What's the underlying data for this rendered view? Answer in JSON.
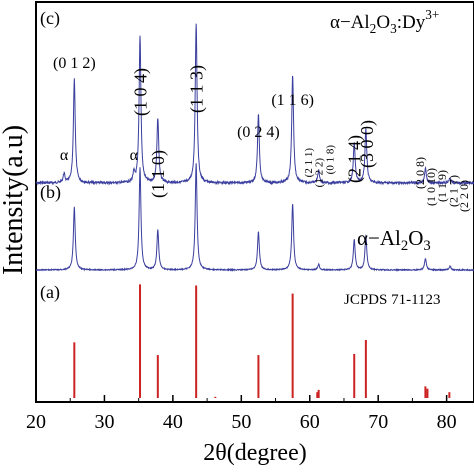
{
  "chart_data": {
    "type": "line",
    "xlabel": "2θ(degree)",
    "ylabel": "Intensity(a.u)",
    "xlim": [
      20,
      84
    ],
    "x_ticks": [
      "20",
      "30",
      "40",
      "50",
      "60",
      "70",
      "80"
    ],
    "panels": [
      {
        "id": "c",
        "panel_label": "(c)",
        "name_prefix": "α−Al",
        "name_sub1": "2",
        "name_mid": "O",
        "name_sub2": "3",
        "name_suffix": ":Dy",
        "name_sup": "3+",
        "color": "#3b3f9e",
        "peaks": [
          {
            "x": 24.1,
            "h": 0.05
          },
          {
            "x": 25.6,
            "h": 0.58
          },
          {
            "x": 34.3,
            "h": 0.05
          },
          {
            "x": 35.2,
            "h": 0.82
          },
          {
            "x": 37.8,
            "h": 0.36
          },
          {
            "x": 43.4,
            "h": 0.89
          },
          {
            "x": 52.5,
            "h": 0.38
          },
          {
            "x": 57.5,
            "h": 0.6
          },
          {
            "x": 61.3,
            "h": 0.07
          },
          {
            "x": 66.5,
            "h": 0.22
          },
          {
            "x": 68.2,
            "h": 0.3
          },
          {
            "x": 76.9,
            "h": 0.08
          },
          {
            "x": 80.5,
            "h": 0.03
          }
        ]
      },
      {
        "id": "b",
        "panel_label": "(b)",
        "name_prefix": "α−Al",
        "name_sub1": "2",
        "name_mid": "O",
        "name_sub2": "3",
        "color": "#3b3f9e",
        "peaks": [
          {
            "x": 25.6,
            "h": 0.33
          },
          {
            "x": 35.2,
            "h": 0.54
          },
          {
            "x": 37.8,
            "h": 0.21
          },
          {
            "x": 43.4,
            "h": 0.56
          },
          {
            "x": 52.5,
            "h": 0.2
          },
          {
            "x": 57.5,
            "h": 0.35
          },
          {
            "x": 61.3,
            "h": 0.03
          },
          {
            "x": 66.5,
            "h": 0.16
          },
          {
            "x": 68.2,
            "h": 0.18
          },
          {
            "x": 76.9,
            "h": 0.06
          },
          {
            "x": 80.5,
            "h": 0.02
          }
        ]
      },
      {
        "id": "a",
        "panel_label": "(a)",
        "name": "JCPDS 71-1123",
        "color": "#cc2222",
        "sticks": [
          {
            "x": 25.6,
            "h": 0.48
          },
          {
            "x": 35.2,
            "h": 0.98
          },
          {
            "x": 37.8,
            "h": 0.37
          },
          {
            "x": 43.4,
            "h": 0.97
          },
          {
            "x": 46.2,
            "h": 0.01
          },
          {
            "x": 52.5,
            "h": 0.37
          },
          {
            "x": 57.5,
            "h": 0.9
          },
          {
            "x": 61.1,
            "h": 0.05
          },
          {
            "x": 61.3,
            "h": 0.07
          },
          {
            "x": 66.5,
            "h": 0.38
          },
          {
            "x": 68.2,
            "h": 0.5
          },
          {
            "x": 76.9,
            "h": 0.1
          },
          {
            "x": 77.2,
            "h": 0.08
          },
          {
            "x": 80.4,
            "h": 0.05
          }
        ]
      }
    ],
    "annotations": [
      {
        "text": "(0 1 2)",
        "x": 25.6,
        "rotate": false
      },
      {
        "text": "(1 0 4)",
        "x": 35.2,
        "rotate": true
      },
      {
        "text": "(1 1 0)",
        "x": 37.8,
        "rotate": true
      },
      {
        "text": "(1 1 3)",
        "x": 43.4,
        "rotate": true
      },
      {
        "text": "(0 2 4)",
        "x": 52.5,
        "rotate": false
      },
      {
        "text": "(1 1 6)",
        "x": 57.5,
        "rotate": false
      },
      {
        "text": "(2 1 1)",
        "x": 59.8,
        "rotate": true,
        "small": true
      },
      {
        "text": "(1 2 2)",
        "x": 61.3,
        "rotate": true,
        "small": true
      },
      {
        "text": "(0 1 8)",
        "x": 62.9,
        "rotate": true,
        "small": true
      },
      {
        "text": "(2 1 4)",
        "x": 66.5,
        "rotate": true
      },
      {
        "text": "(3 0 0)",
        "x": 68.3,
        "rotate": true
      },
      {
        "text": "(2 0 8)",
        "x": 76.1,
        "rotate": true,
        "small": true
      },
      {
        "text": "(1 0 10)",
        "x": 77.7,
        "rotate": true,
        "small": true
      },
      {
        "text": "(1 1 9)",
        "x": 79.3,
        "rotate": true,
        "small": true
      },
      {
        "text": "(2 1 7)",
        "x": 81.0,
        "rotate": true,
        "small": true
      },
      {
        "text": "(2 2 0)",
        "x": 82.5,
        "rotate": true,
        "small": true
      },
      {
        "text": "α",
        "x": 24.1,
        "rotate": false
      },
      {
        "text": "α",
        "x": 34.3,
        "rotate": false
      }
    ]
  }
}
